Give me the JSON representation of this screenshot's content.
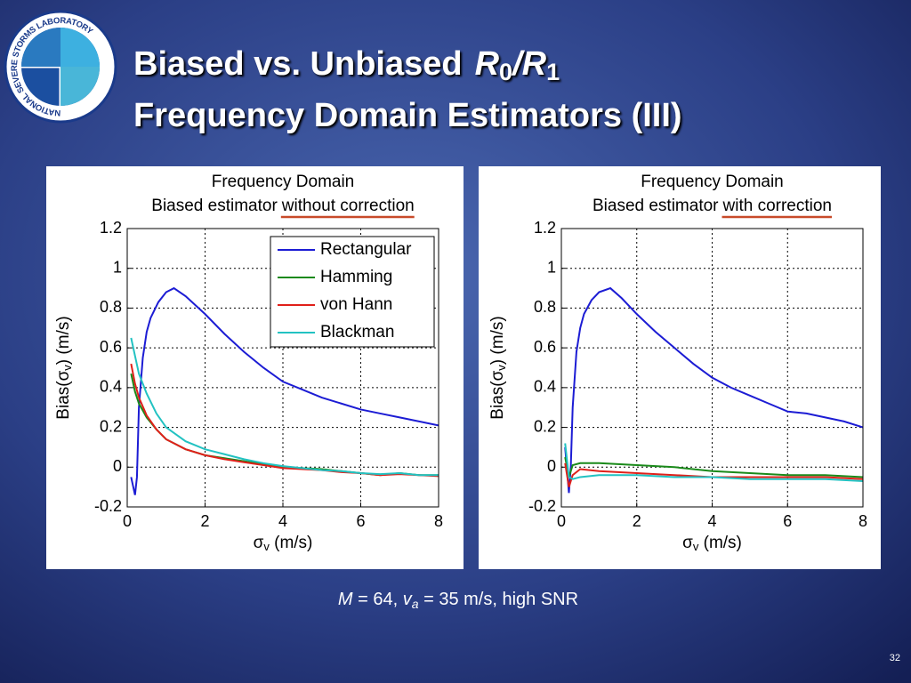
{
  "slide": {
    "logo_text": "NATIONAL SEVERE STORMS LABORATORY",
    "title": {
      "text": "Biased vs. Unbiased",
      "numerator": "R",
      "numerator_sub": "0",
      "slash": "/",
      "denominator": "R",
      "denominator_sub": "1"
    },
    "title_line2": "Frequency Domain Estimators (III)",
    "caption": {
      "m": "M",
      "m_value": " = 64, ",
      "v": "v",
      "v_sub": "a",
      "rest": " = 35 m/s, high SNR"
    },
    "page_number": "32"
  },
  "chart_data": [
    {
      "type": "line",
      "title": "Frequency Domain",
      "subtitle": "Biased estimator",
      "subtitle_emphasis": "without correction",
      "xlabel": {
        "main": "σ",
        "sub": "v",
        "rest": " (m/s)"
      },
      "ylabel": {
        "main": "Bias(σ",
        "sub": "v",
        "rest": ") (m/s)"
      },
      "xlim": [
        0,
        8
      ],
      "xticks": [
        0,
        2,
        4,
        6,
        8
      ],
      "ylim": [
        -0.2,
        1.2
      ],
      "yticks": [
        -0.2,
        0,
        0.2,
        0.4,
        0.6,
        0.8,
        1,
        1.2
      ],
      "grid": true,
      "legend": "upper right",
      "series": [
        {
          "name": "Rectangular",
          "color": "#1c1cd4",
          "x": [
            0.1,
            0.2,
            0.25,
            0.3,
            0.4,
            0.5,
            0.6,
            0.8,
            1.0,
            1.2,
            1.5,
            2,
            2.5,
            3,
            3.5,
            4,
            4.5,
            5,
            5.5,
            6,
            6.5,
            7,
            7.5,
            8
          ],
          "values": [
            -0.05,
            -0.14,
            -0.05,
            0.3,
            0.55,
            0.68,
            0.75,
            0.83,
            0.88,
            0.9,
            0.86,
            0.77,
            0.67,
            0.58,
            0.5,
            0.43,
            0.39,
            0.35,
            0.32,
            0.29,
            0.27,
            0.25,
            0.23,
            0.21
          ]
        },
        {
          "name": "Hamming",
          "color": "#1a8a1a",
          "x": [
            0.1,
            0.2,
            0.3,
            0.5,
            0.75,
            1,
            1.5,
            2,
            2.5,
            3,
            3.5,
            4,
            4.5,
            5,
            5.5,
            6,
            6.5,
            7,
            7.5,
            8
          ],
          "values": [
            0.47,
            0.38,
            0.32,
            0.25,
            0.19,
            0.14,
            0.09,
            0.06,
            0.045,
            0.03,
            0.015,
            0,
            -0.005,
            -0.01,
            -0.02,
            -0.03,
            -0.04,
            -0.03,
            -0.04,
            -0.04
          ]
        },
        {
          "name": "von Hann",
          "color": "#e0201a",
          "x": [
            0.1,
            0.2,
            0.3,
            0.5,
            0.75,
            1,
            1.5,
            2,
            2.5,
            3,
            3.5,
            4,
            4.5,
            5,
            5.5,
            6,
            6.5,
            7,
            7.5,
            8
          ],
          "values": [
            0.52,
            0.42,
            0.35,
            0.26,
            0.19,
            0.14,
            0.09,
            0.06,
            0.04,
            0.025,
            0.01,
            -0.005,
            -0.01,
            -0.015,
            -0.025,
            -0.03,
            -0.04,
            -0.035,
            -0.04,
            -0.045
          ]
        },
        {
          "name": "Blackman",
          "color": "#22c2c2",
          "x": [
            0.1,
            0.2,
            0.3,
            0.5,
            0.75,
            1,
            1.5,
            2,
            2.5,
            3,
            3.5,
            4,
            4.5,
            5,
            5.5,
            6,
            6.5,
            7,
            7.5,
            8
          ],
          "values": [
            0.65,
            0.56,
            0.47,
            0.37,
            0.27,
            0.2,
            0.13,
            0.09,
            0.065,
            0.04,
            0.02,
            0.005,
            -0.005,
            -0.015,
            -0.02,
            -0.03,
            -0.035,
            -0.03,
            -0.04,
            -0.04
          ]
        }
      ]
    },
    {
      "type": "line",
      "title": "Frequency Domain",
      "subtitle": "Biased estimator",
      "subtitle_emphasis": "with correction",
      "xlabel": {
        "main": "σ",
        "sub": "v",
        "rest": " (m/s)"
      },
      "ylabel": {
        "main": "Bias(σ",
        "sub": "v",
        "rest": ") (m/s)"
      },
      "xlim": [
        0,
        8
      ],
      "xticks": [
        0,
        2,
        4,
        6,
        8
      ],
      "ylim": [
        -0.2,
        1.2
      ],
      "yticks": [
        -0.2,
        0,
        0.2,
        0.4,
        0.6,
        0.8,
        1,
        1.2
      ],
      "grid": true,
      "series": [
        {
          "name": "Rectangular",
          "color": "#1c1cd4",
          "x": [
            0.1,
            0.2,
            0.25,
            0.3,
            0.4,
            0.5,
            0.6,
            0.8,
            1.0,
            1.3,
            1.6,
            2,
            2.5,
            3,
            3.5,
            4,
            4.5,
            5,
            5.5,
            6,
            6.5,
            7,
            7.5,
            8
          ],
          "values": [
            0.1,
            -0.13,
            0,
            0.3,
            0.58,
            0.7,
            0.77,
            0.84,
            0.88,
            0.9,
            0.85,
            0.77,
            0.68,
            0.6,
            0.52,
            0.45,
            0.4,
            0.36,
            0.32,
            0.28,
            0.27,
            0.25,
            0.23,
            0.2
          ]
        },
        {
          "name": "Hamming",
          "color": "#1a8a1a",
          "x": [
            0.1,
            0.2,
            0.3,
            0.5,
            1,
            2,
            3,
            4,
            5,
            6,
            7,
            8
          ],
          "values": [
            0.05,
            -0.05,
            0.01,
            0.02,
            0.02,
            0.01,
            0,
            -0.02,
            -0.03,
            -0.04,
            -0.04,
            -0.05
          ]
        },
        {
          "name": "von Hann",
          "color": "#e0201a",
          "x": [
            0.1,
            0.2,
            0.3,
            0.5,
            1,
            2,
            3,
            4,
            5,
            6,
            7,
            8
          ],
          "values": [
            0.02,
            -0.1,
            -0.04,
            -0.01,
            -0.02,
            -0.03,
            -0.04,
            -0.05,
            -0.05,
            -0.05,
            -0.05,
            -0.06
          ]
        },
        {
          "name": "Blackman",
          "color": "#22c2c2",
          "x": [
            0.1,
            0.2,
            0.3,
            0.5,
            1,
            2,
            3,
            4,
            5,
            6,
            7,
            8
          ],
          "values": [
            0.12,
            -0.05,
            -0.06,
            -0.05,
            -0.04,
            -0.04,
            -0.05,
            -0.05,
            -0.06,
            -0.06,
            -0.06,
            -0.07
          ]
        }
      ]
    }
  ]
}
